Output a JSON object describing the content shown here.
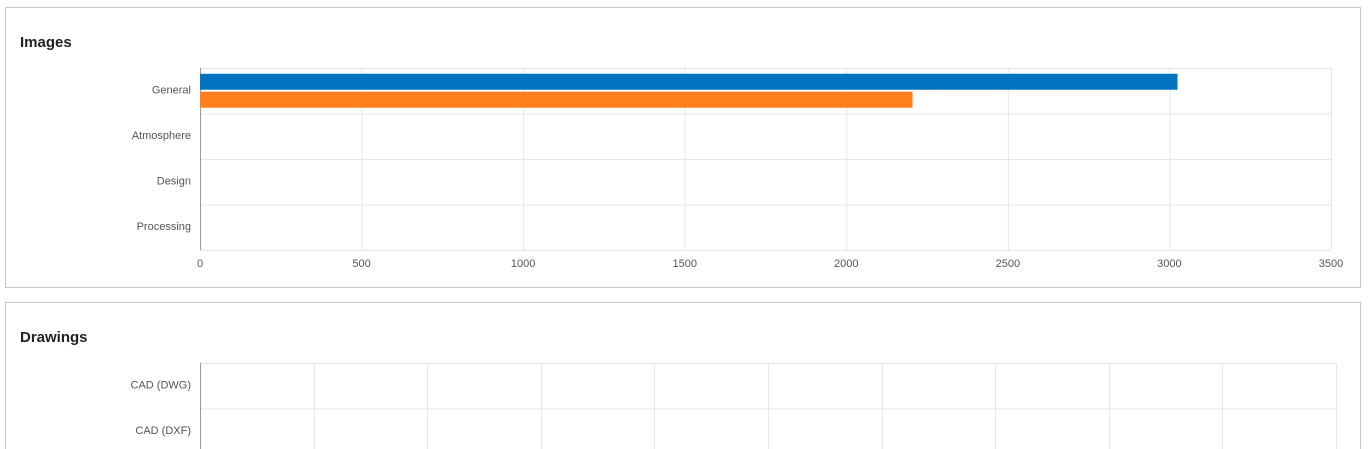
{
  "chart_data": [
    {
      "type": "bar",
      "orientation": "horizontal",
      "title": "Images",
      "categories": [
        "General",
        "Atmosphere",
        "Design",
        "Processing"
      ],
      "series": [
        {
          "color": "#0073c1",
          "values": [
            3025,
            0,
            0,
            0
          ]
        },
        {
          "color": "#ff7f1e",
          "values": [
            2205,
            0,
            0,
            0
          ]
        }
      ],
      "xlim": [
        0,
        3500
      ],
      "xticks": [
        0,
        500,
        1000,
        1500,
        2000,
        2500,
        3000,
        3500
      ],
      "grid": true
    },
    {
      "type": "bar",
      "orientation": "horizontal",
      "title": "Drawings",
      "categories": [
        "CAD (DWG)",
        "CAD (DXF)"
      ],
      "grid": true
    }
  ]
}
